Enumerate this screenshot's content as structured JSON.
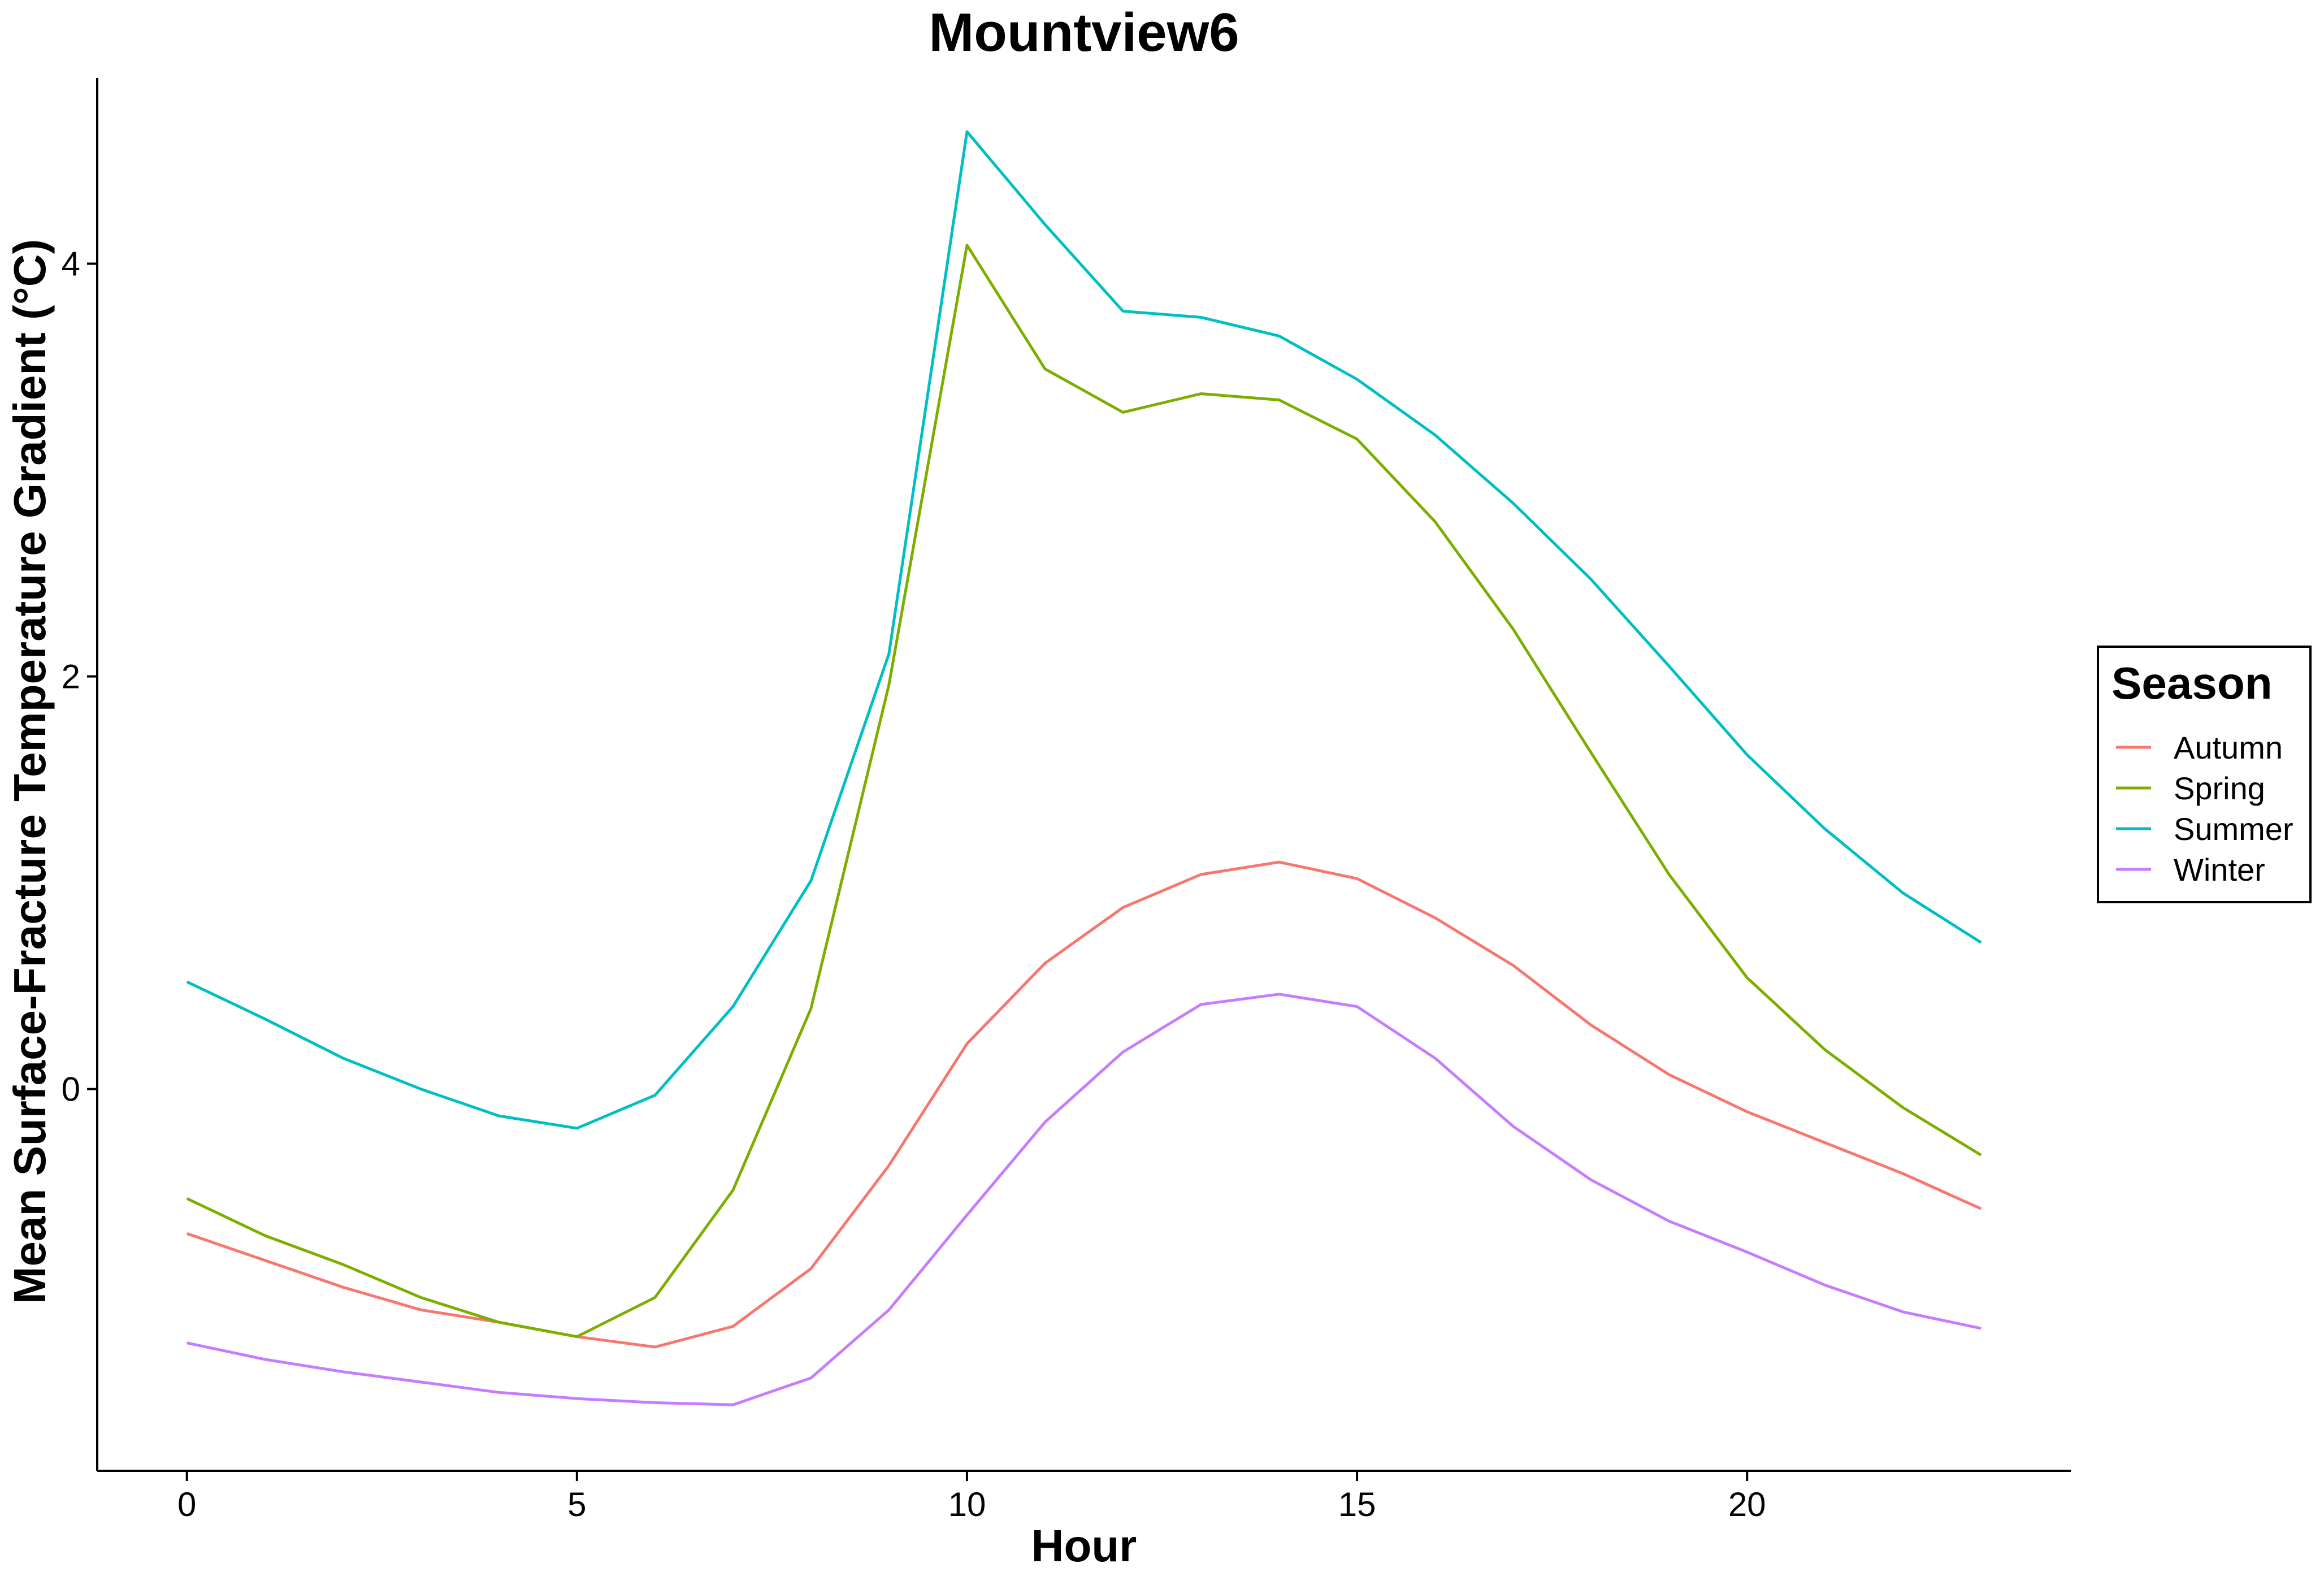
{
  "chart_data": {
    "type": "line",
    "title": "Mountview6",
    "xlabel": "Hour",
    "ylabel": "Mean Surface-Fracture Temperature Gradient (°C)",
    "xlim": [
      -1.15,
      24.15
    ],
    "ylim": [
      -1.85,
      4.9
    ],
    "x_ticks": [
      0,
      5,
      10,
      15,
      20
    ],
    "y_ticks": [
      0,
      2,
      4
    ],
    "grid": false,
    "legend": {
      "title": "Season",
      "placement": "right"
    },
    "x": [
      0,
      1,
      2,
      3,
      4,
      5,
      6,
      7,
      8,
      9,
      10,
      11,
      12,
      13,
      14,
      15,
      16,
      17,
      18,
      19,
      20,
      21,
      22,
      23
    ],
    "series": [
      {
        "name": "Autumn",
        "color": "#F8766D",
        "values": [
          -0.7,
          -0.83,
          -0.96,
          -1.07,
          -1.13,
          -1.2,
          -1.25,
          -1.15,
          -0.87,
          -0.37,
          0.22,
          0.61,
          0.88,
          1.04,
          1.1,
          1.02,
          0.83,
          0.6,
          0.31,
          0.07,
          -0.11,
          -0.26,
          -0.41,
          -0.58
        ]
      },
      {
        "name": "Spring",
        "color": "#7CAE00",
        "values": [
          -0.53,
          -0.71,
          -0.85,
          -1.01,
          -1.13,
          -1.2,
          -1.01,
          -0.49,
          0.39,
          1.96,
          4.09,
          3.49,
          3.28,
          3.37,
          3.34,
          3.15,
          2.75,
          2.23,
          1.63,
          1.04,
          0.54,
          0.19,
          -0.09,
          -0.32
        ]
      },
      {
        "name": "Summer",
        "color": "#00BFC4",
        "values": [
          0.52,
          0.34,
          0.15,
          0.0,
          -0.13,
          -0.19,
          -0.03,
          0.4,
          1.01,
          2.11,
          4.64,
          4.19,
          3.77,
          3.74,
          3.65,
          3.44,
          3.17,
          2.84,
          2.47,
          2.05,
          1.62,
          1.26,
          0.95,
          0.71
        ]
      },
      {
        "name": "Winter",
        "color": "#C77CFF",
        "values": [
          -1.23,
          -1.31,
          -1.37,
          -1.42,
          -1.47,
          -1.5,
          -1.52,
          -1.53,
          -1.4,
          -1.07,
          -0.61,
          -0.16,
          0.18,
          0.41,
          0.46,
          0.4,
          0.15,
          -0.18,
          -0.44,
          -0.64,
          -0.79,
          -0.95,
          -1.08,
          -1.16
        ]
      }
    ]
  }
}
